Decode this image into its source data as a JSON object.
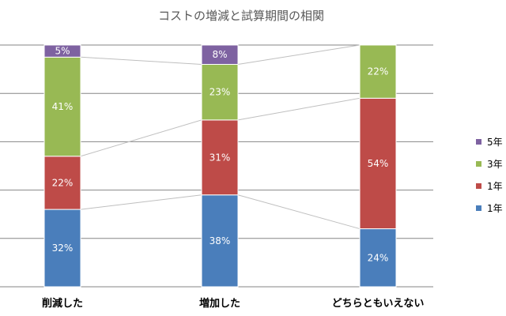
{
  "chart_data": {
    "type": "bar",
    "stacked": true,
    "title": "コストの増減と試算期間の相関",
    "xlabel": "",
    "ylabel": "",
    "categories": [
      "削減した",
      "増加した",
      "どちらともいえない"
    ],
    "series": [
      {
        "name": "1年",
        "color": "#4a7ebb",
        "values": [
          32,
          38,
          24
        ]
      },
      {
        "name": "1年",
        "color": "#be4b48",
        "values": [
          22,
          31,
          54
        ]
      },
      {
        "name": "3年",
        "color": "#98b954",
        "values": [
          41,
          23,
          22
        ]
      },
      {
        "name": "5年",
        "color": "#7e62a1",
        "values": [
          5,
          8,
          0
        ]
      }
    ],
    "labels": [
      [
        "32%",
        "38%",
        "24%"
      ],
      [
        "22%",
        "31%",
        "54%"
      ],
      [
        "41%",
        "23%",
        "22%"
      ],
      [
        "5%",
        "8%",
        ""
      ]
    ],
    "ylim": [
      0,
      100
    ],
    "grid": true,
    "legend_position": "right",
    "legend_order": [
      3,
      2,
      1,
      0
    ]
  }
}
